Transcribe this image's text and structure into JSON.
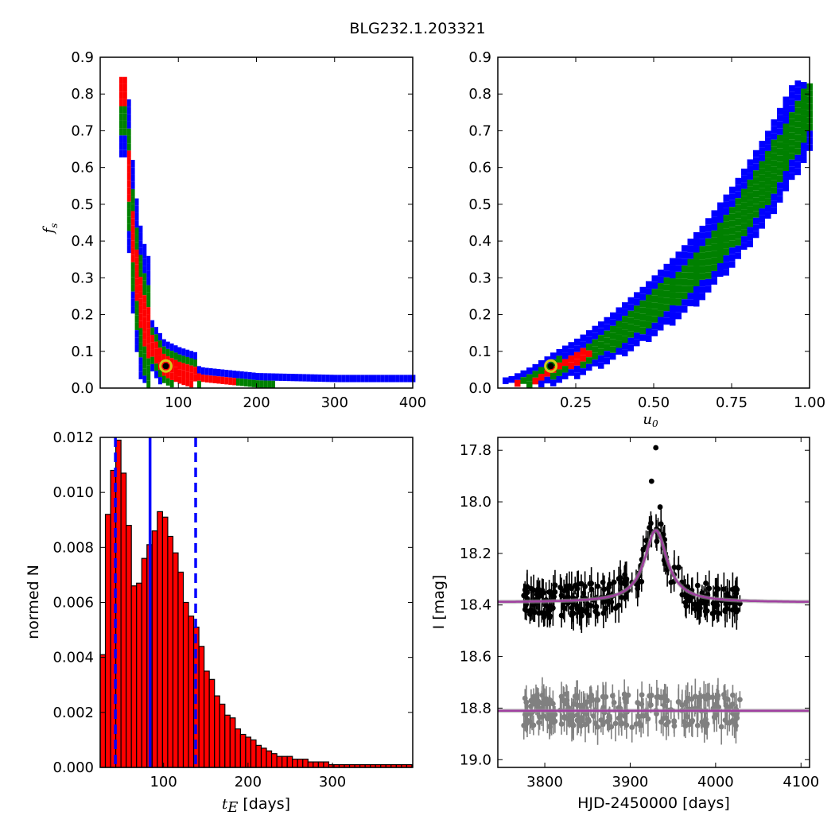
{
  "figure": {
    "title": "BLG232.1.203321"
  },
  "panels": {
    "fs_vs_tE": {
      "ylabel": "f",
      "ylabel_sub": "s",
      "xticks": [
        "100",
        "200",
        "300",
        "400"
      ],
      "yticks": [
        "0.0",
        "0.1",
        "0.2",
        "0.3",
        "0.4",
        "0.5",
        "0.6",
        "0.7",
        "0.8",
        "0.9"
      ]
    },
    "fs_vs_u0": {
      "xlabel": "u",
      "xlabel_sub": "0",
      "xticks": [
        "0.25",
        "0.50",
        "0.75",
        "1.00"
      ],
      "yticks": [
        "0.0",
        "0.1",
        "0.2",
        "0.3",
        "0.4",
        "0.5",
        "0.6",
        "0.7",
        "0.8",
        "0.9"
      ]
    },
    "hist": {
      "ylabel": "normed N",
      "xlabel_main": "t",
      "xlabel_sub": "E",
      "xlabel_unit": "[days]",
      "xticks": [
        "100",
        "200",
        "300"
      ],
      "yticks": [
        "0.000",
        "0.002",
        "0.004",
        "0.006",
        "0.008",
        "0.010",
        "0.012"
      ]
    },
    "lightcurve": {
      "ylabel": "I [mag]",
      "xlabel": "HJD-2450000 [days]",
      "xticks": [
        "3800",
        "3900",
        "4000",
        "4100"
      ],
      "yticks": [
        "17.8",
        "18.0",
        "18.2",
        "18.4",
        "18.6",
        "18.8",
        "19.0"
      ]
    }
  },
  "colors": {
    "sigma3": "#0000ff",
    "sigma2": "#008000",
    "sigma1": "#ff0000",
    "best": "#000000",
    "marker": "#d4c81a",
    "hist_bar": "#ff0000",
    "median_line": "#0000ff",
    "data_main": "#000000",
    "data_resid": "#808080",
    "model": "#a040a0"
  },
  "chart_data": [
    {
      "type": "heatmap",
      "panel": "fs_vs_tE",
      "xlim": [
        0,
        400
      ],
      "ylim": [
        0.0,
        0.9
      ],
      "ylabel": "f_s",
      "best_fit": {
        "x": 84,
        "y": 0.06
      },
      "ridge": [
        [
          30,
          0.84
        ],
        [
          32,
          0.7
        ],
        [
          35,
          0.55
        ],
        [
          38,
          0.45
        ],
        [
          42,
          0.35
        ],
        [
          48,
          0.25
        ],
        [
          55,
          0.18
        ],
        [
          65,
          0.12
        ],
        [
          80,
          0.07
        ],
        [
          100,
          0.05
        ],
        [
          130,
          0.03
        ],
        [
          200,
          0.015
        ],
        [
          300,
          0.01
        ],
        [
          400,
          0.01
        ]
      ]
    },
    {
      "type": "heatmap",
      "panel": "fs_vs_u0",
      "xlim": [
        0.0,
        1.0
      ],
      "ylim": [
        0.0,
        0.9
      ],
      "xlabel": "u_0",
      "best_fit": {
        "x": 0.17,
        "y": 0.06
      },
      "ridge": [
        [
          0.03,
          0.01
        ],
        [
          0.1,
          0.03
        ],
        [
          0.17,
          0.06
        ],
        [
          0.25,
          0.09
        ],
        [
          0.35,
          0.14
        ],
        [
          0.45,
          0.2
        ],
        [
          0.55,
          0.27
        ],
        [
          0.65,
          0.35
        ],
        [
          0.75,
          0.45
        ],
        [
          0.85,
          0.57
        ],
        [
          0.95,
          0.72
        ],
        [
          1.0,
          0.8
        ]
      ]
    },
    {
      "type": "bar",
      "panel": "hist",
      "xlabel": "t_E [days]",
      "ylabel": "normed N",
      "xlim": [
        25,
        395
      ],
      "ylim": [
        0.0,
        0.012
      ],
      "bin_start": 25,
      "bin_width": 6.15,
      "values": [
        0.0041,
        0.0092,
        0.0108,
        0.0119,
        0.0107,
        0.0088,
        0.0066,
        0.0067,
        0.0076,
        0.0081,
        0.0086,
        0.0093,
        0.0091,
        0.0084,
        0.0078,
        0.0071,
        0.006,
        0.0055,
        0.0051,
        0.0044,
        0.0035,
        0.0032,
        0.0026,
        0.0023,
        0.0019,
        0.0018,
        0.0014,
        0.0012,
        0.0011,
        0.001,
        0.0008,
        0.0007,
        0.0006,
        0.0005,
        0.0004,
        0.0004,
        0.0004,
        0.0003,
        0.0003,
        0.0003,
        0.0002,
        0.0002,
        0.0002,
        0.0002,
        0.0001,
        0.0001,
        0.0001,
        0.0001,
        0.0001,
        0.0001,
        0.0001,
        0.0001,
        0.0001,
        0.0001,
        0.0001,
        0.0001,
        0.0001,
        0.0001,
        0.0001,
        0.0001
      ],
      "median": 84,
      "percentile_lines": [
        43,
        138
      ]
    },
    {
      "type": "scatter",
      "panel": "lightcurve",
      "xlabel": "HJD-2450000 [days]",
      "ylabel": "I [mag]",
      "xlim": [
        3745,
        4110
      ],
      "ylim": [
        19.03,
        17.75
      ],
      "y_inverted": true,
      "data_range": [
        3775,
        4032
      ],
      "baseline_mag": 18.39,
      "model": {
        "t0": 3930,
        "peak_mag": 18.11,
        "baseline": 18.39,
        "width": 16
      },
      "residual_offset": 18.81,
      "highlighted_points": [
        [
          3930,
          17.79
        ],
        [
          3925,
          17.92
        ],
        [
          3935,
          18.02
        ]
      ]
    }
  ]
}
